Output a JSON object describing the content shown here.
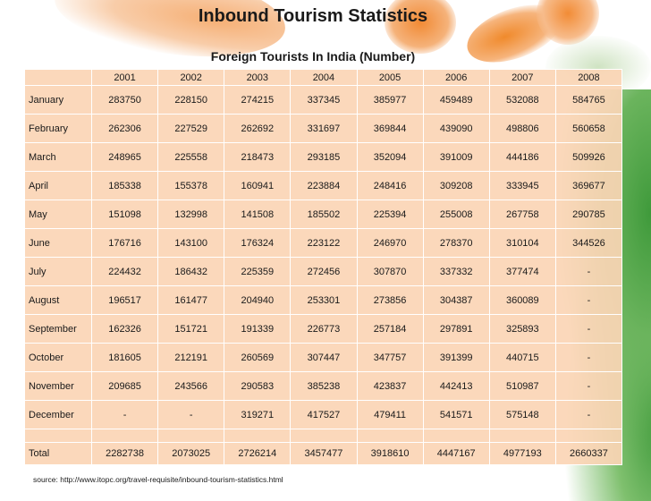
{
  "title": "Inbound Tourism Statistics",
  "subtitle": "Foreign Tourists In India (Number)",
  "table": {
    "columns": [
      "2001",
      "2002",
      "2003",
      "2004",
      "2005",
      "2006",
      "2007",
      "2008"
    ],
    "rows": [
      {
        "label": "January",
        "values": [
          "283750",
          "228150",
          "274215",
          "337345",
          "385977",
          "459489",
          "532088",
          "584765"
        ]
      },
      {
        "label": "February",
        "values": [
          "262306",
          "227529",
          "262692",
          "331697",
          "369844",
          "439090",
          "498806",
          "560658"
        ]
      },
      {
        "label": "March",
        "values": [
          "248965",
          "225558",
          "218473",
          "293185",
          "352094",
          "391009",
          "444186",
          "509926"
        ]
      },
      {
        "label": "April",
        "values": [
          "185338",
          "155378",
          "160941",
          "223884",
          "248416",
          "309208",
          "333945",
          "369677"
        ]
      },
      {
        "label": "May",
        "values": [
          "151098",
          "132998",
          "141508",
          "185502",
          "225394",
          "255008",
          "267758",
          "290785"
        ]
      },
      {
        "label": "June",
        "values": [
          "176716",
          "143100",
          "176324",
          "223122",
          "246970",
          "278370",
          "310104",
          "344526"
        ]
      },
      {
        "label": "July",
        "values": [
          "224432",
          "186432",
          "225359",
          "272456",
          "307870",
          "337332",
          "377474",
          "-"
        ]
      },
      {
        "label": "August",
        "values": [
          "196517",
          "161477",
          "204940",
          "253301",
          "273856",
          "304387",
          "360089",
          "-"
        ]
      },
      {
        "label": "September",
        "values": [
          "162326",
          "151721",
          "191339",
          "226773",
          "257184",
          "297891",
          "325893",
          "-"
        ]
      },
      {
        "label": "October",
        "values": [
          "181605",
          "212191",
          "260569",
          "307447",
          "347757",
          "391399",
          "440715",
          "-"
        ]
      },
      {
        "label": "November",
        "values": [
          "209685",
          "243566",
          "290583",
          "385238",
          "423837",
          "442413",
          "510987",
          "-"
        ]
      },
      {
        "label": "December",
        "values": [
          "-",
          "-",
          "319271",
          "417527",
          "479411",
          "541571",
          "575148",
          "-"
        ]
      }
    ],
    "total": {
      "label": "Total",
      "values": [
        "2282738",
        "2073025",
        "2726214",
        "3457477",
        "3918610",
        "4447167",
        "4977193",
        "2660337"
      ]
    }
  },
  "source": "source: http://www.itopc.org/travel-requisite/inbound-tourism-statistics.html"
}
